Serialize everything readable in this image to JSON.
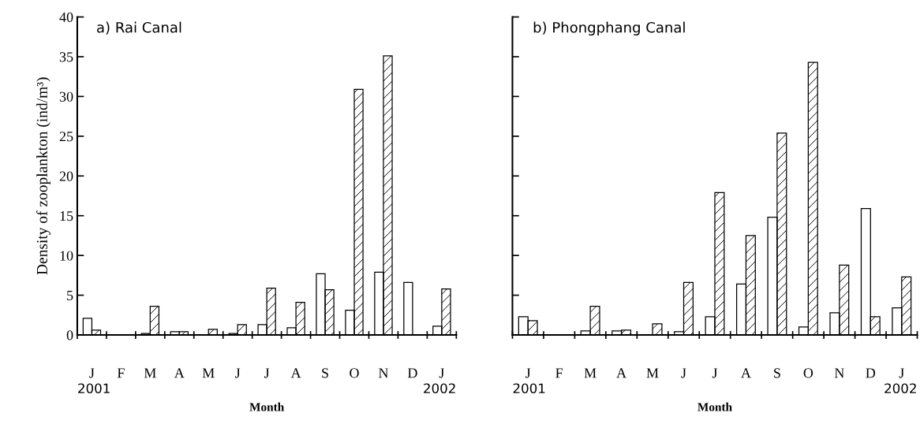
{
  "chart_data": [
    {
      "type": "bar",
      "title": "a) Rai Canal",
      "xlabel": "Month",
      "ylabel": "Density of zooplankton (ind/m³)",
      "categories": [
        "J",
        "F",
        "M",
        "A",
        "M",
        "J",
        "J",
        "A",
        "S",
        "O",
        "N",
        "D",
        "J"
      ],
      "series": [
        {
          "color": "#ffffff",
          "values": [
            2.1,
            null,
            0.2,
            0.4,
            0,
            0.2,
            1.3,
            0.9,
            7.7,
            3.1,
            7.9,
            6.6,
            1.1
          ]
        },
        {
          "color": "#000000",
          "values": [
            0.6,
            null,
            3.6,
            0.4,
            0.7,
            1.3,
            5.9,
            4.1,
            5.7,
            30.9,
            35.1,
            null,
            5.8
          ]
        }
      ],
      "ylim": [
        0,
        40
      ],
      "yticks": [
        0,
        5,
        10,
        15,
        20,
        25,
        30,
        35,
        40
      ],
      "grid": false,
      "legend": false,
      "annotations": [
        "2001",
        "2002"
      ]
    },
    {
      "type": "bar",
      "title": "b) Phongphang Canal",
      "xlabel": "Month",
      "categories": [
        "J",
        "F",
        "M",
        "A",
        "M",
        "J",
        "J",
        "A",
        "S",
        "O",
        "N",
        "D",
        "J"
      ],
      "series": [
        {
          "color": "#ffffff",
          "values": [
            2.3,
            0,
            0.5,
            0.5,
            0,
            0.4,
            2.3,
            6.4,
            14.8,
            1.0,
            2.8,
            15.9,
            3.4
          ]
        },
        {
          "color": "#000000",
          "values": [
            1.8,
            0,
            3.6,
            0.6,
            1.4,
            6.6,
            17.9,
            12.5,
            25.4,
            34.3,
            8.8,
            2.3,
            7.3
          ]
        }
      ],
      "ylim": [
        0,
        40
      ],
      "yticks": [
        0,
        5,
        10,
        15,
        20,
        25,
        30,
        35,
        40
      ],
      "tick_labels": "x",
      "grid": false,
      "legend": false,
      "annotations": [
        "2001",
        "2002"
      ]
    }
  ]
}
